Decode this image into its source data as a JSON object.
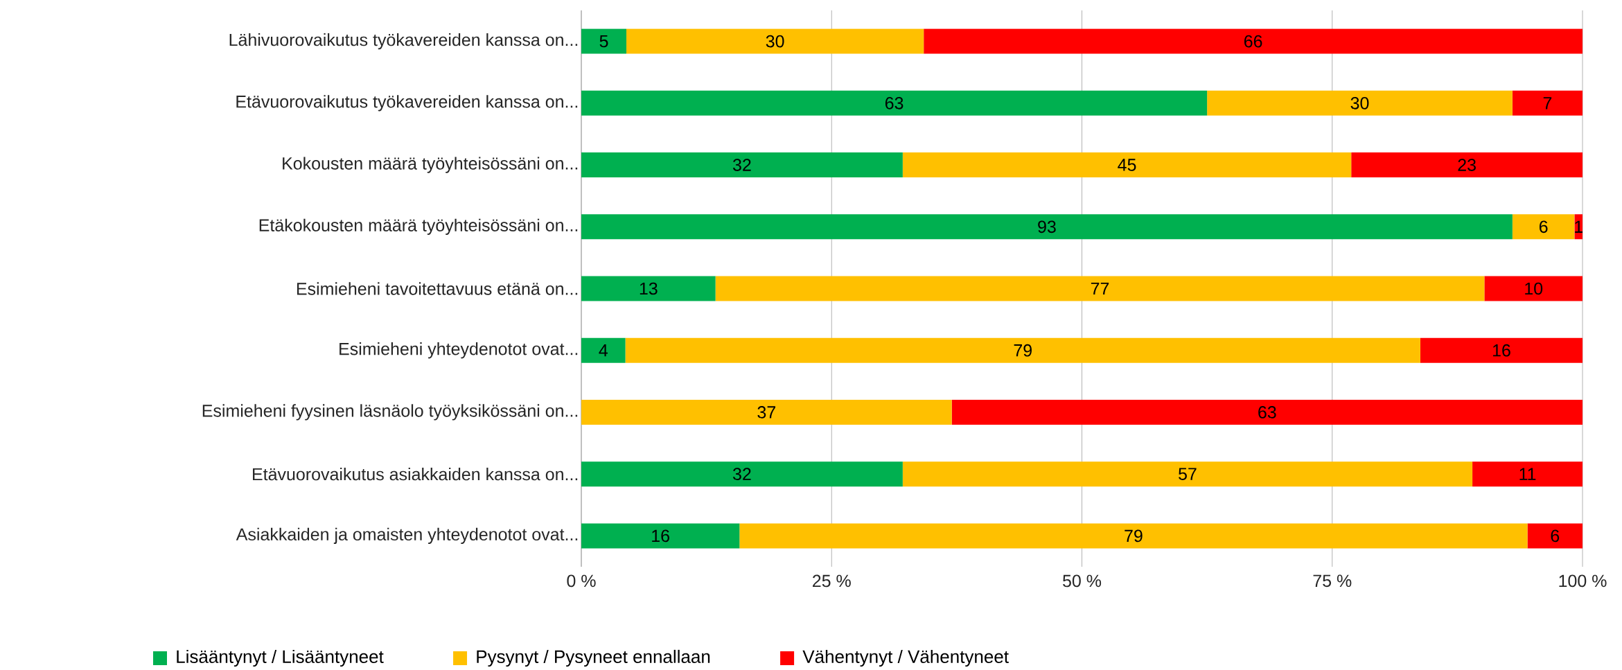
{
  "chart_data": {
    "type": "bar",
    "orientation": "horizontal",
    "stacked": true,
    "categories": [
      "Lähivuorovaikutus työkavereiden kanssa on...",
      "Etävuorovaikutus työkavereiden kanssa on...",
      "Kokousten määrä työyhteisössäni on...",
      "Etäkokousten määrä työyhteisössäni on...",
      "Esimieheni tavoitettavuus etänä on...",
      "Esimieheni yhteydenotot ovat...",
      "Esimieheni fyysinen läsnäolo työyksikössäni on...",
      "Etävuorovaikutus asiakkaiden kanssa on...",
      "Asiakkaiden ja omaisten yhteydenotot ovat..."
    ],
    "series": [
      {
        "name": "Lisääntynyt / Lisääntyneet",
        "color": "#00b050",
        "values": [
          4.5,
          62.5,
          32.1,
          93.0,
          13.4,
          4.4,
          0,
          32.1,
          15.8
        ],
        "value_labels": [
          "5",
          "63",
          "32",
          "93",
          "13",
          "4",
          null,
          "32",
          "16"
        ]
      },
      {
        "name": "Pysynyt / Pysyneet ennallaan",
        "color": "#ffc000",
        "values": [
          29.7,
          30.5,
          44.8,
          6.2,
          76.8,
          79.4,
          37.0,
          56.9,
          78.7
        ],
        "value_labels": [
          "30",
          "30",
          "45",
          "6",
          "77",
          "79",
          "37",
          "57",
          "79"
        ]
      },
      {
        "name": "Vähentynyt / Vähentyneet",
        "color": "#ff0000",
        "values": [
          65.8,
          7.0,
          23.1,
          0.8,
          9.8,
          16.2,
          63.0,
          11.0,
          5.5
        ],
        "value_labels": [
          "66",
          "7",
          "23",
          "1",
          "10",
          "16",
          "63",
          "11",
          "6"
        ]
      }
    ],
    "xlim": [
      0,
      100
    ],
    "xticks": [
      {
        "value": 0,
        "label": "0 %"
      },
      {
        "value": 25,
        "label": "25 %"
      },
      {
        "value": 50,
        "label": "50 %"
      },
      {
        "value": 75,
        "label": "75 %"
      },
      {
        "value": 100,
        "label": "100 %"
      }
    ],
    "grid": "x",
    "legend": "bottom"
  }
}
